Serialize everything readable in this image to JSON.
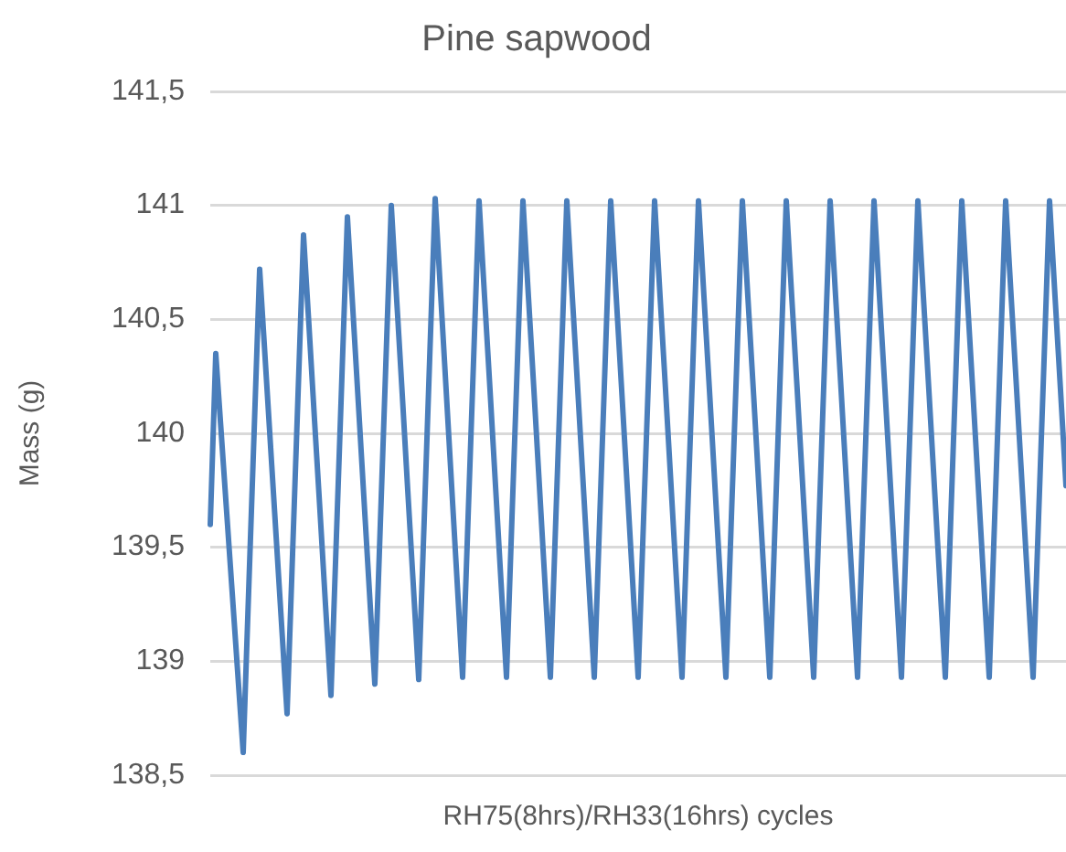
{
  "chart_data": {
    "type": "line",
    "title": "Pine sapwood",
    "xlabel": "RH75(8hrs)/RH33(16hrs) cycles",
    "ylabel": "Mass (g)",
    "categories": [
      null,
      null,
      null,
      null,
      null,
      null,
      null,
      null,
      null,
      null,
      null,
      null,
      null,
      null,
      null,
      null,
      null,
      null,
      null,
      null,
      null,
      null,
      null,
      null,
      null,
      null,
      null,
      null,
      null,
      null,
      null,
      null,
      null,
      null,
      null,
      null,
      null,
      null,
      null,
      null,
      null,
      null,
      null,
      null,
      null,
      null,
      null,
      null,
      null,
      null,
      null,
      null,
      null,
      null,
      null,
      null,
      null,
      null,
      null,
      null,
      null,
      null,
      null,
      null,
      null,
      null,
      null,
      null,
      null,
      null,
      null,
      null,
      null,
      null,
      null,
      null,
      null,
      null,
      null,
      null,
      null,
      null,
      null,
      null,
      null,
      null,
      null,
      null,
      null,
      null,
      null,
      null,
      null,
      null,
      null,
      null,
      null,
      null,
      null,
      null,
      null,
      null,
      null,
      null,
      null,
      null,
      null,
      null,
      null,
      null,
      null,
      null,
      null,
      null,
      null,
      null,
      null,
      null,
      null,
      null,
      null,
      null,
      null,
      null,
      null,
      null,
      null,
      null,
      null,
      null,
      null,
      null,
      null,
      null,
      null,
      null,
      null,
      null,
      null,
      null,
      null,
      null,
      null,
      null,
      null,
      null,
      null,
      null,
      null,
      null,
      null,
      null,
      null,
      null,
      null,
      null,
      null
    ],
    "series": [
      {
        "color": "#4a7ebb",
        "values": [
          139.6,
          140.35,
          140.0,
          139.65,
          139.3,
          138.95,
          138.6,
          139.31,
          140.01,
          140.72,
          140.33,
          139.94,
          139.55,
          139.16,
          138.77,
          139.47,
          140.17,
          140.87,
          140.47,
          140.06,
          139.66,
          139.25,
          138.85,
          139.55,
          140.25,
          140.95,
          140.54,
          140.13,
          139.72,
          139.31,
          138.9,
          139.6,
          140.3,
          141.0,
          140.58,
          140.17,
          139.75,
          139.34,
          138.92,
          139.62,
          140.33,
          141.03,
          140.61,
          140.19,
          139.77,
          139.35,
          138.93,
          139.63,
          140.32,
          141.02,
          140.6,
          140.19,
          139.77,
          139.35,
          138.93,
          139.63,
          140.32,
          141.02,
          140.6,
          140.19,
          139.77,
          139.35,
          138.93,
          139.63,
          140.32,
          141.02,
          140.6,
          140.19,
          139.77,
          139.35,
          138.93,
          139.63,
          140.32,
          141.02,
          140.6,
          140.19,
          139.77,
          139.35,
          138.93,
          139.63,
          140.32,
          141.02,
          140.6,
          140.19,
          139.77,
          139.35,
          138.93,
          139.63,
          140.32,
          141.02,
          140.6,
          140.19,
          139.77,
          139.35,
          138.93,
          139.63,
          140.32,
          141.02,
          140.6,
          140.19,
          139.77,
          139.35,
          138.93,
          139.63,
          140.32,
          141.02,
          140.6,
          140.19,
          139.77,
          139.35,
          138.93,
          139.63,
          140.32,
          141.02,
          140.6,
          140.19,
          139.77,
          139.35,
          138.93,
          139.63,
          140.32,
          141.02,
          140.6,
          140.19,
          139.77,
          139.35,
          138.93,
          139.63,
          140.32,
          141.02,
          140.6,
          140.19,
          139.77,
          139.35,
          138.93,
          139.63,
          140.32,
          141.02,
          140.6,
          140.19,
          139.77,
          139.35,
          138.93,
          139.63,
          140.32,
          141.02,
          140.6,
          140.19,
          139.77,
          139.35,
          138.93,
          139.63,
          140.32,
          141.02,
          140.6,
          140.19,
          139.77
        ]
      }
    ],
    "ylim": [
      138.5,
      141.5
    ],
    "yticks": [
      {
        "value": 138.5,
        "label": "138,5"
      },
      139,
      {
        "value": 139.5,
        "label": "139,5"
      },
      140,
      {
        "value": 140.5,
        "label": "140,5"
      },
      141,
      {
        "value": 141.5,
        "label": "141,5"
      }
    ],
    "grid": "y",
    "tick_labels": "y",
    "legend": false,
    "marker": "none",
    "line_style": "solid"
  }
}
